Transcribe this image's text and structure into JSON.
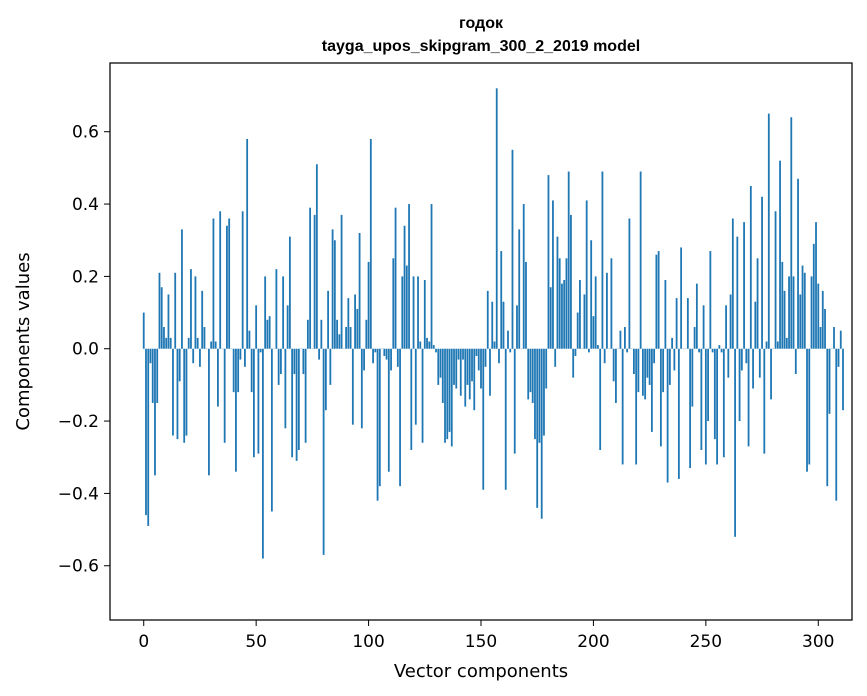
{
  "chart_data": {
    "type": "bar",
    "title": "годок",
    "subtitle": "tayga_upos_skipgram_300_2_2019 model",
    "xlabel": "Vector components",
    "ylabel": "Components values",
    "xlim": [
      -15,
      315
    ],
    "ylim": [
      -0.75,
      0.79
    ],
    "xticks": [
      0,
      50,
      100,
      150,
      200,
      250,
      300
    ],
    "yticks": [
      -0.6,
      -0.4,
      -0.2,
      0.0,
      0.2,
      0.4,
      0.6
    ],
    "ytick_labels": [
      "−0.6",
      "−0.4",
      "−0.2",
      "0.0",
      "0.2",
      "0.4",
      "0.6"
    ],
    "bar_color": "#1f77b4",
    "values": [
      0.1,
      -0.46,
      -0.49,
      -0.04,
      -0.15,
      -0.35,
      -0.15,
      0.21,
      0.17,
      0.06,
      0.03,
      0.15,
      0.03,
      -0.24,
      0.21,
      -0.25,
      -0.09,
      0.33,
      -0.26,
      -0.24,
      0.03,
      0.22,
      -0.04,
      0.2,
      0.03,
      -0.05,
      0.16,
      0.06,
      0.0,
      -0.35,
      0.02,
      0.36,
      0.02,
      -0.16,
      0.38,
      0.0,
      -0.26,
      0.34,
      0.36,
      0.0,
      -0.12,
      -0.34,
      -0.12,
      -0.03,
      0.38,
      -0.05,
      0.58,
      0.05,
      -0.12,
      -0.3,
      0.12,
      -0.29,
      -0.01,
      -0.58,
      0.2,
      0.08,
      0.09,
      -0.45,
      0.0,
      0.22,
      -0.1,
      -0.07,
      0.2,
      -0.22,
      0.12,
      0.31,
      -0.3,
      -0.07,
      -0.31,
      -0.28,
      0.0,
      -0.07,
      -0.26,
      0.08,
      0.39,
      0.0,
      0.37,
      0.51,
      -0.03,
      0.08,
      -0.57,
      -0.17,
      0.16,
      -0.1,
      0.33,
      0.3,
      0.08,
      0.04,
      0.37,
      0.0,
      0.06,
      0.14,
      0.06,
      -0.21,
      0.15,
      0.11,
      0.32,
      -0.22,
      -0.06,
      0.08,
      0.24,
      0.58,
      -0.04,
      -0.01,
      -0.42,
      -0.38,
      0.0,
      -0.02,
      -0.03,
      -0.34,
      -0.06,
      0.25,
      0.39,
      -0.05,
      -0.38,
      0.2,
      0.34,
      0.23,
      0.4,
      -0.28,
      0.2,
      -0.21,
      0.2,
      0.02,
      -0.26,
      0.19,
      0.03,
      0.02,
      0.4,
      0.01,
      -0.01,
      -0.1,
      -0.08,
      -0.15,
      -0.26,
      -0.25,
      -0.23,
      -0.27,
      -0.1,
      -0.11,
      -0.03,
      -0.13,
      -0.03,
      -0.16,
      -0.1,
      -0.14,
      -0.09,
      -0.17,
      -0.02,
      -0.06,
      -0.11,
      -0.39,
      -0.05,
      0.16,
      -0.13,
      0.13,
      0.02,
      0.72,
      -0.04,
      0.27,
      0.13,
      -0.39,
      0.05,
      -0.01,
      0.55,
      -0.29,
      0.12,
      0.33,
      0.0,
      0.4,
      0.24,
      -0.14,
      -0.12,
      -0.15,
      -0.25,
      -0.44,
      -0.26,
      -0.47,
      -0.24,
      -0.11,
      0.48,
      0.17,
      0.41,
      -0.05,
      0.31,
      0.25,
      0.18,
      0.19,
      0.25,
      0.49,
      0.37,
      -0.08,
      -0.02,
      0.1,
      0.19,
      0.0,
      0.15,
      0.41,
      -0.01,
      0.3,
      0.09,
      0.2,
      0.01,
      -0.28,
      0.49,
      -0.04,
      0.21,
      0.0,
      0.25,
      -0.09,
      -0.15,
      0.0,
      0.05,
      -0.32,
      0.06,
      -0.01,
      0.36,
      0.0,
      -0.07,
      -0.32,
      -0.12,
      0.49,
      -0.13,
      -0.14,
      -0.08,
      -0.1,
      -0.23,
      -0.04,
      0.26,
      0.27,
      -0.27,
      -0.12,
      0.19,
      -0.37,
      -0.1,
      0.03,
      -0.06,
      0.14,
      -0.36,
      0.28,
      0.0,
      0.0,
      0.14,
      -0.33,
      -0.16,
      0.06,
      0.18,
      -0.01,
      -0.28,
      0.12,
      -0.32,
      -0.2,
      0.27,
      -0.01,
      -0.25,
      -0.32,
      0.01,
      -0.01,
      -0.3,
      0.12,
      -0.08,
      0.15,
      0.36,
      -0.52,
      0.31,
      -0.2,
      -0.06,
      0.35,
      -0.04,
      -0.27,
      0.45,
      -0.11,
      0.13,
      0.25,
      -0.08,
      0.42,
      -0.29,
      0.02,
      0.65,
      -0.14,
      0.0,
      0.38,
      0.02,
      0.52,
      0.24,
      0.16,
      0.03,
      0.2,
      0.64,
      0.2,
      -0.07,
      0.47,
      0.15,
      0.23,
      0.21,
      -0.34,
      -0.32,
      0.2,
      0.29,
      0.35,
      0.18,
      0.06,
      0.16,
      0.11,
      -0.38,
      -0.18,
      0.0,
      0.06,
      -0.42,
      -0.05,
      0.05,
      -0.17
    ]
  }
}
